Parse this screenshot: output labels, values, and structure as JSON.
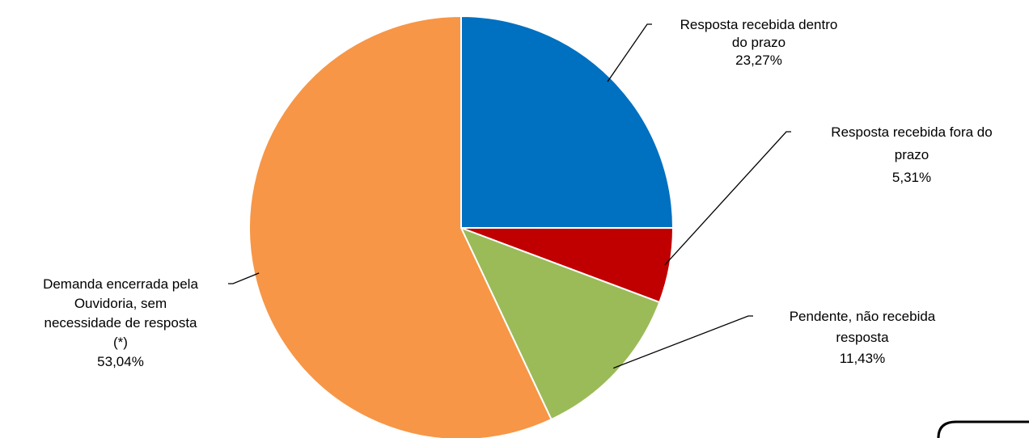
{
  "chart_data": {
    "type": "pie",
    "title": "",
    "slices": [
      {
        "lines": [
          "Resposta recebida dentro",
          "do prazo"
        ],
        "value_label": "23,27%",
        "value": 23.27,
        "color": "#0070C0"
      },
      {
        "lines": [
          "Resposta recebida fora do",
          "prazo"
        ],
        "value_label": "5,31%",
        "value": 5.31,
        "color": "#C00000"
      },
      {
        "lines": [
          "Pendente, não recebida",
          "resposta"
        ],
        "value_label": "11,43%",
        "value": 11.43,
        "color": "#9BBB59"
      },
      {
        "lines": [
          "Demanda encerrada pela",
          "Ouvidoria, sem",
          "necessidade de resposta",
          "(*)"
        ],
        "value_label": "53,04%",
        "value": 53.04,
        "color": "#F79646"
      }
    ],
    "legend": "none",
    "grid": false
  }
}
